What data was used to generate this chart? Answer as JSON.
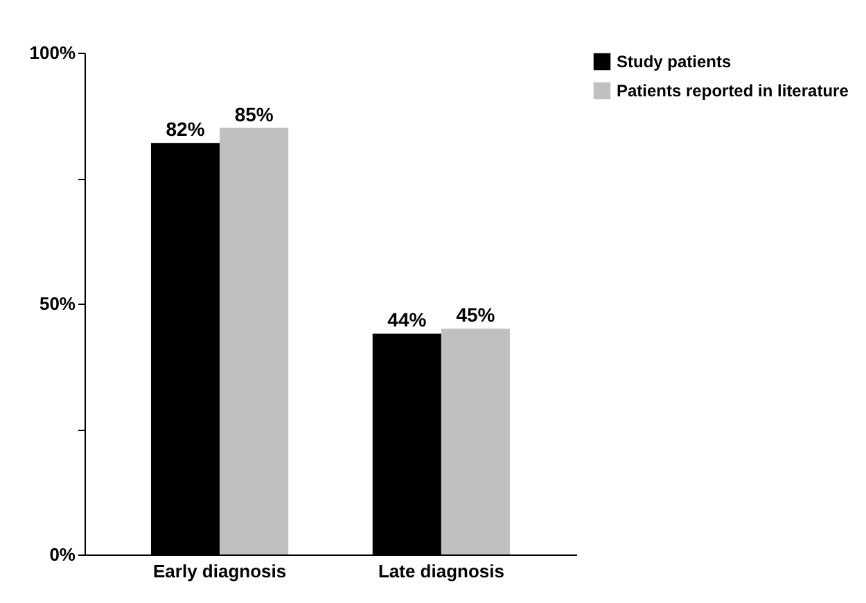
{
  "chart_data": {
    "type": "bar",
    "categories": [
      "Early diagnosis",
      "Late diagnosis"
    ],
    "series": [
      {
        "name": "Study patients",
        "color": "#000000",
        "values": [
          82,
          44
        ],
        "value_labels": [
          "82%",
          "44%"
        ]
      },
      {
        "name": "Patients reported in literature",
        "color": "#c0c0c0",
        "values": [
          85,
          45
        ],
        "value_labels": [
          "85%",
          "45%"
        ]
      }
    ],
    "ylim": [
      0,
      100
    ],
    "yticks": [
      {
        "value": 0,
        "label": "0%"
      },
      {
        "value": 25,
        "label": null
      },
      {
        "value": 50,
        "label": "50%"
      },
      {
        "value": 75,
        "label": null
      },
      {
        "value": 100,
        "label": "100%"
      }
    ],
    "grid": false,
    "legend": "right"
  }
}
